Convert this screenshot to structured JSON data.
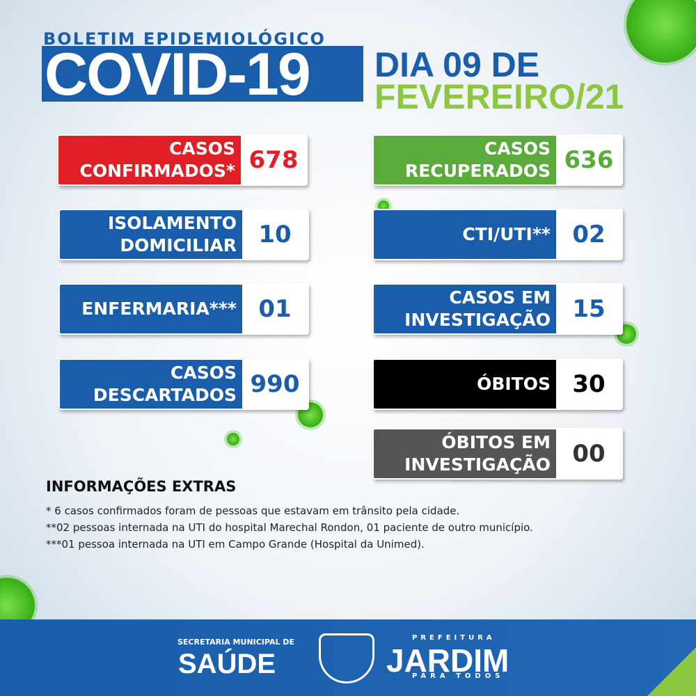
{
  "header": {
    "subtitle": "BOLETIM EPIDEMIOLÓGICO",
    "title": "COVID-19",
    "date_line1": "DIA 09 DE",
    "date_line2": "FEVEREIRO/21"
  },
  "cards": [
    {
      "label": [
        "CASOS",
        "CONFIRMADOS*"
      ],
      "value": "678",
      "color": "#e01f26",
      "value_color": "#e01f26"
    },
    {
      "label": [
        "CASOS",
        "RECUPERADOS"
      ],
      "value": "636",
      "color": "#5aab3c",
      "value_color": "#5aab3c"
    },
    {
      "label": [
        "ISOLAMENTO",
        "DOMICILIAR"
      ],
      "value": "10",
      "color": "#1a5eab",
      "value_color": "#1a5eab"
    },
    {
      "label": [
        "CTI/UTI**"
      ],
      "value": "02",
      "color": "#1a5eab",
      "value_color": "#1a5eab"
    },
    {
      "label": [
        "ENFERMARIA***"
      ],
      "value": "01",
      "color": "#1a5eab",
      "value_color": "#1a5eab"
    },
    {
      "label": [
        "CASOS EM",
        "INVESTIGAÇÃO"
      ],
      "value": "15",
      "color": "#1a5eab",
      "value_color": "#1a5eab"
    },
    {
      "label": [
        "CASOS",
        "DESCARTADOS"
      ],
      "value": "990",
      "color": "#1a5eab",
      "value_color": "#1a5eab"
    },
    {
      "label": [
        "ÓBITOS"
      ],
      "value": "30",
      "color": "#000000",
      "value_color": "#000000"
    },
    {
      "label": [
        "ÓBITOS EM",
        "INVESTIGAÇÃO"
      ],
      "value": "00",
      "color": "#555555",
      "value_color": "#333333"
    }
  ],
  "extras": {
    "title": "INFORMAÇÕES EXTRAS",
    "notes": [
      "* 6 casos confirmados foram de pessoas que estavam em trânsito pela cidade.",
      "**02 pessoas internada na UTI do hospital Marechal Rondon, 01 paciente de outro município.",
      "***01  pessoa internada na UTI em Campo Grande (Hospital da Unimed)."
    ]
  },
  "footer": {
    "secretaria": "SECRETARIA MUNICIPAL DE",
    "saude": "SAÚDE",
    "prefeitura": "PREFEITURA",
    "city": "JARDIM",
    "slogan": "PARA TODOS"
  }
}
